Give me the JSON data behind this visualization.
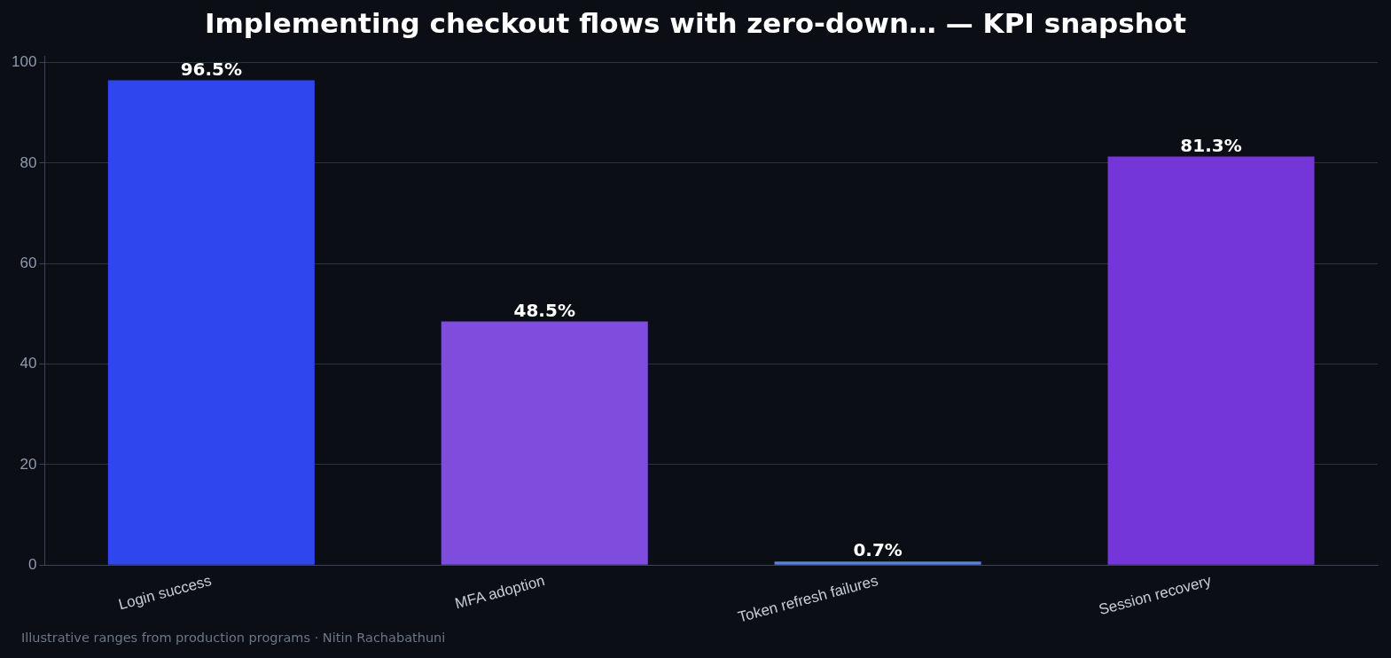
{
  "chart_data": {
    "type": "bar",
    "title": "Implementing checkout flows with zero-down… — KPI snapshot",
    "categories": [
      "Login success",
      "MFA adoption",
      "Token refresh failures",
      "Session recovery"
    ],
    "values": [
      96.5,
      48.5,
      0.7,
      81.3
    ],
    "colors": [
      "#2f45ee",
      "#7e4ddd",
      "#5b7fdd",
      "#7536d9"
    ],
    "value_labels": [
      "96.5%",
      "48.5%",
      "0.7%",
      "81.3%"
    ],
    "ylim": [
      0,
      101.3
    ],
    "yticks": [
      0,
      20,
      40,
      60,
      80,
      100
    ],
    "grid": "y",
    "legend": false,
    "annotations": [
      "Illustrative ranges from production programs · Nitin Rachabathuni"
    ]
  }
}
